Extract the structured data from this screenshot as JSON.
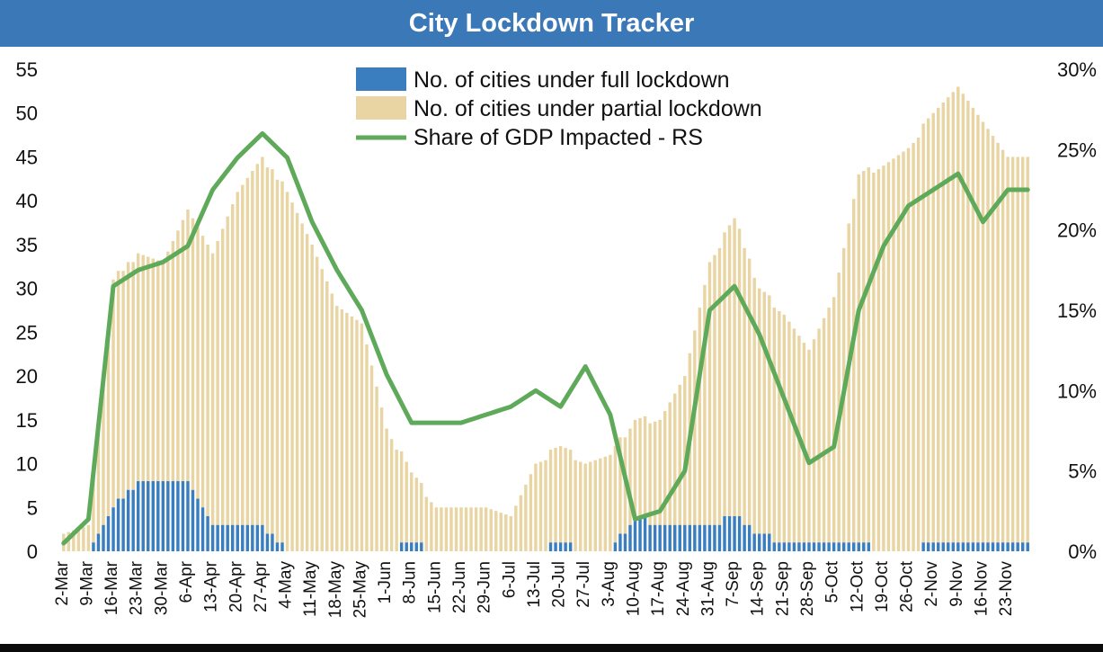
{
  "header": {
    "title": "City Lockdown Tracker"
  },
  "chart_data": {
    "type": "bar",
    "title": "City Lockdown Tracker",
    "stacked": true,
    "week_labels": [
      "2-Mar",
      "9-Mar",
      "16-Mar",
      "23-Mar",
      "30-Mar",
      "6-Apr",
      "13-Apr",
      "20-Apr",
      "27-Apr",
      "4-May",
      "11-May",
      "18-May",
      "25-May",
      "1-Jun",
      "8-Jun",
      "15-Jun",
      "22-Jun",
      "29-Jun",
      "6-Jul",
      "13-Jul",
      "20-Jul",
      "27-Jul",
      "3-Aug",
      "10-Aug",
      "17-Aug",
      "24-Aug",
      "31-Aug",
      "7-Sep",
      "14-Sep",
      "21-Sep",
      "28-Sep",
      "5-Oct",
      "12-Oct",
      "19-Oct",
      "26-Oct",
      "2-Nov",
      "9-Nov",
      "16-Nov",
      "23-Nov"
    ],
    "y_left": {
      "min": 0,
      "max": 55,
      "step": 5
    },
    "y_right": {
      "min": 0,
      "max": 0.3,
      "step": 0.05,
      "format": "percent"
    },
    "series": [
      {
        "name": "No. of cities under full lockdown",
        "axis": "left",
        "color": "#3a7ebf",
        "weekly_values": [
          0,
          0,
          5,
          8,
          8,
          8,
          3,
          3,
          3,
          0,
          0,
          0,
          0,
          0,
          1,
          0,
          0,
          0,
          0,
          0,
          1,
          0,
          0,
          4,
          3,
          3,
          3,
          4,
          2,
          1,
          1,
          1,
          1,
          0,
          0,
          1,
          1,
          1,
          1
        ]
      },
      {
        "name": "No. of cities under partial lockdown",
        "axis": "left",
        "color": "#e8d5a3",
        "weekly_values": [
          2,
          3,
          26,
          26,
          25,
          31,
          31,
          38,
          42,
          41,
          35,
          28,
          26,
          14,
          8,
          5,
          5,
          5,
          4,
          10,
          11,
          10,
          11,
          11,
          12,
          17,
          30,
          34,
          28,
          26,
          22,
          28,
          42,
          44,
          46,
          49,
          52,
          48,
          44
        ]
      },
      {
        "name": "Share of GDP Impacted - RS",
        "axis": "right",
        "color": "#5faa5a",
        "weekly_values": [
          0.005,
          0.02,
          0.165,
          0.175,
          0.18,
          0.19,
          0.225,
          0.245,
          0.26,
          0.245,
          0.205,
          0.175,
          0.15,
          0.11,
          0.08,
          0.08,
          0.08,
          0.085,
          0.09,
          0.1,
          0.09,
          0.115,
          0.085,
          0.02,
          0.025,
          0.05,
          0.15,
          0.165,
          0.135,
          0.095,
          0.055,
          0.065,
          0.15,
          0.19,
          0.215,
          0.225,
          0.235,
          0.205,
          0.225
        ]
      }
    ],
    "legend": "top-center",
    "grid": false
  }
}
